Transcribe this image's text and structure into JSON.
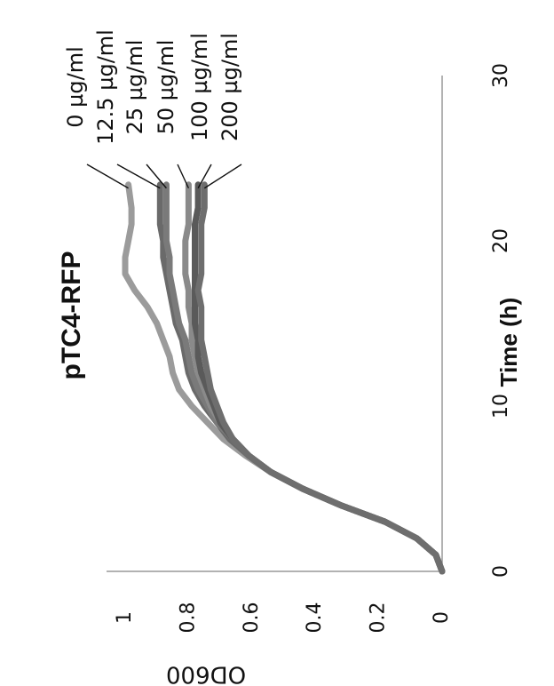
{
  "chart_data": {
    "type": "line",
    "title": "pTC4-RFP",
    "xlabel": "Time (h)",
    "ylabel": "OD600",
    "xlim": [
      0,
      30
    ],
    "ylim": [
      0,
      1.1
    ],
    "xticks": [
      "0",
      "10",
      "20",
      "30"
    ],
    "yticks": [
      "0",
      "0.2",
      "0.4",
      "0.6",
      "0.8",
      "1"
    ],
    "grid": false,
    "legend": "callout labels at curve ends",
    "series": [
      {
        "name": "0 µg/ml",
        "color": "#9b9b9b",
        "x": [
          0,
          1,
          2,
          3,
          4,
          5,
          6,
          7,
          8,
          9,
          10,
          11,
          12,
          13,
          14,
          15,
          16,
          17,
          18,
          19,
          20,
          21,
          22,
          23.4
        ],
        "y": [
          0.0,
          0.02,
          0.08,
          0.18,
          0.32,
          0.44,
          0.54,
          0.62,
          0.69,
          0.74,
          0.79,
          0.83,
          0.85,
          0.86,
          0.88,
          0.9,
          0.93,
          0.97,
          1.0,
          1.0,
          0.99,
          0.98,
          0.98,
          0.99
        ]
      },
      {
        "name": "12.5 µg/ml",
        "color": "#6a6a6a",
        "x": [
          0,
          1,
          2,
          3,
          4,
          5,
          6,
          7,
          8,
          9,
          10,
          11,
          12,
          13,
          14,
          15,
          16,
          17,
          18,
          19,
          20,
          21,
          22,
          23.4
        ],
        "y": [
          0.0,
          0.02,
          0.08,
          0.18,
          0.32,
          0.44,
          0.54,
          0.61,
          0.67,
          0.71,
          0.75,
          0.78,
          0.8,
          0.81,
          0.82,
          0.84,
          0.85,
          0.86,
          0.87,
          0.88,
          0.88,
          0.89,
          0.89,
          0.89
        ]
      },
      {
        "name": "25 µg/ml",
        "color": "#7a7a7a",
        "x": [
          0,
          1,
          2,
          3,
          4,
          5,
          6,
          7,
          8,
          9,
          10,
          11,
          12,
          13,
          14,
          15,
          16,
          17,
          18,
          19,
          20,
          21,
          22,
          23.4
        ],
        "y": [
          0.0,
          0.02,
          0.08,
          0.18,
          0.32,
          0.44,
          0.54,
          0.61,
          0.66,
          0.71,
          0.74,
          0.77,
          0.79,
          0.8,
          0.81,
          0.83,
          0.84,
          0.85,
          0.86,
          0.86,
          0.87,
          0.87,
          0.87,
          0.87
        ]
      },
      {
        "name": "50 µg/ml",
        "color": "#8a8a8a",
        "x": [
          0,
          1,
          2,
          3,
          4,
          5,
          6,
          7,
          8,
          9,
          10,
          11,
          12,
          13,
          14,
          15,
          16,
          17,
          18,
          19,
          20,
          21,
          22,
          23.4
        ],
        "y": [
          0.0,
          0.02,
          0.08,
          0.18,
          0.32,
          0.44,
          0.54,
          0.61,
          0.66,
          0.7,
          0.73,
          0.75,
          0.77,
          0.78,
          0.79,
          0.79,
          0.8,
          0.8,
          0.81,
          0.81,
          0.81,
          0.8,
          0.8,
          0.8
        ]
      },
      {
        "name": "100 µg/ml",
        "color": "#5a5a5a",
        "x": [
          0,
          1,
          2,
          3,
          4,
          5,
          6,
          7,
          8,
          9,
          10,
          11,
          12,
          13,
          14,
          15,
          16,
          17,
          18,
          19,
          20,
          21,
          22,
          23.4
        ],
        "y": [
          0.0,
          0.02,
          0.08,
          0.18,
          0.32,
          0.44,
          0.54,
          0.61,
          0.66,
          0.7,
          0.72,
          0.74,
          0.76,
          0.77,
          0.77,
          0.78,
          0.78,
          0.78,
          0.78,
          0.78,
          0.78,
          0.78,
          0.77,
          0.77
        ]
      },
      {
        "name": "200 µg/ml",
        "color": "#6e6e6e",
        "x": [
          0,
          1,
          2,
          3,
          4,
          5,
          6,
          7,
          8,
          9,
          10,
          11,
          12,
          13,
          14,
          15,
          16,
          17,
          18,
          19,
          20,
          21,
          22,
          23.4
        ],
        "y": [
          0.0,
          0.02,
          0.08,
          0.18,
          0.32,
          0.44,
          0.54,
          0.61,
          0.66,
          0.69,
          0.71,
          0.73,
          0.74,
          0.75,
          0.76,
          0.76,
          0.76,
          0.77,
          0.76,
          0.76,
          0.76,
          0.76,
          0.75,
          0.75
        ]
      }
    ]
  }
}
